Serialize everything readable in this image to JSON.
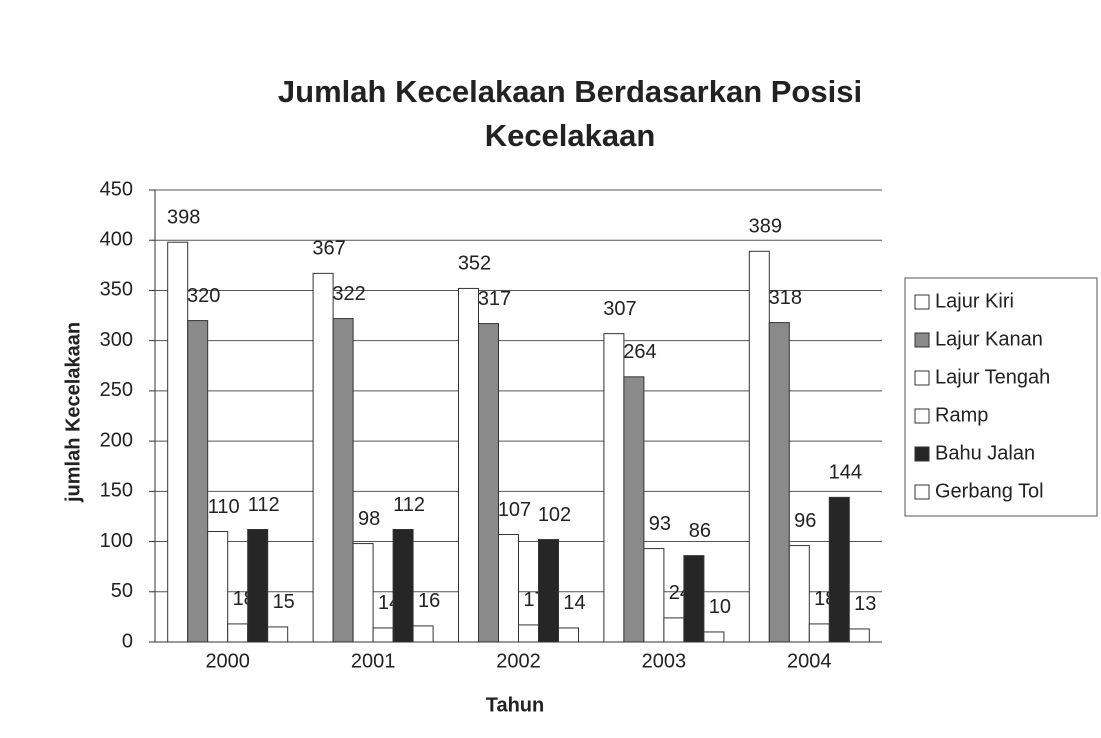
{
  "chart_data": {
    "type": "bar",
    "title": "Jumlah Kecelakaan Berdasarkan Posisi Kecelakaan",
    "x_label": "Tahun",
    "y_label": "jumlah Kecelakaan",
    "categories": [
      "2000",
      "2001",
      "2002",
      "2003",
      "2004"
    ],
    "series": [
      {
        "name": "Lajur Kiri",
        "color": "#ffffff",
        "values": [
          398,
          367,
          352,
          307,
          389
        ]
      },
      {
        "name": "Lajur Kanan",
        "color": "#8a8a8a",
        "values": [
          320,
          322,
          317,
          264,
          318
        ]
      },
      {
        "name": "Lajur Tengah",
        "color": "#ffffff",
        "values": [
          110,
          98,
          107,
          93,
          96
        ]
      },
      {
        "name": "Ramp",
        "color": "#ffffff",
        "values": [
          18,
          14,
          17,
          24,
          18
        ]
      },
      {
        "name": "Bahu Jalan",
        "color": "#262626",
        "values": [
          112,
          112,
          102,
          86,
          144
        ]
      },
      {
        "name": "Gerbang Tol",
        "color": "#ffffff",
        "values": [
          15,
          16,
          14,
          10,
          13
        ]
      }
    ],
    "ylim": [
      0,
      450
    ],
    "yticks": [
      0,
      50,
      100,
      150,
      200,
      250,
      300,
      350,
      400,
      450
    ],
    "grid": true,
    "legend": "right"
  }
}
